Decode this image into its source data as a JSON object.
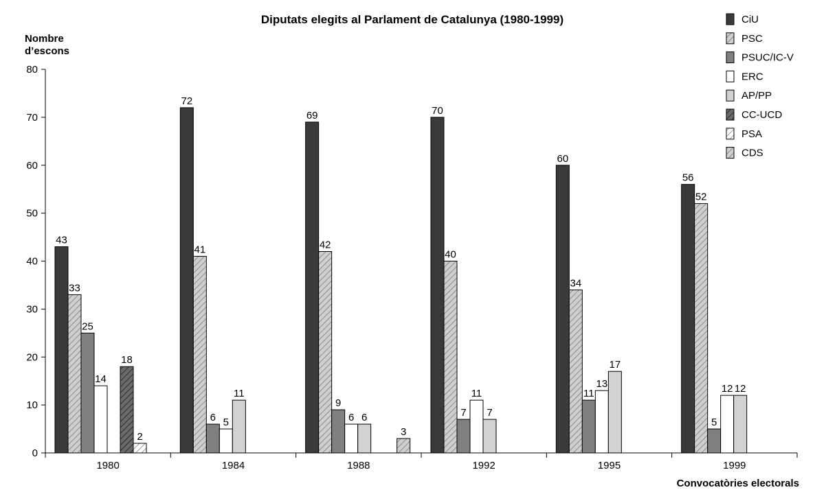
{
  "chart_data": {
    "type": "bar",
    "title": "Diputats elegits al Parlament de Catalunya (1980-1999)",
    "ylabel_line1": "Nombre",
    "ylabel_line2": "d’escons",
    "xlabel": "Convocatòries electorals",
    "ylim": [
      0,
      80
    ],
    "yticks": [
      0,
      10,
      20,
      30,
      40,
      50,
      60,
      70,
      80
    ],
    "categories": [
      "1980",
      "1984",
      "1988",
      "1992",
      "1995",
      "1999"
    ],
    "legend_position": "top-right",
    "series": [
      {
        "name": "CiU",
        "fill": "#3a3a3a",
        "pattern": "solid",
        "values": [
          43,
          72,
          69,
          70,
          60,
          56
        ]
      },
      {
        "name": "PSC",
        "fill": "#c8c8c8",
        "pattern": "hatch",
        "values": [
          33,
          41,
          42,
          40,
          34,
          52
        ]
      },
      {
        "name": "PSUC/IC-V",
        "fill": "#808080",
        "pattern": "solid",
        "values": [
          25,
          6,
          9,
          7,
          11,
          5
        ]
      },
      {
        "name": "ERC",
        "fill": "#ffffff",
        "pattern": "solid",
        "values": [
          14,
          5,
          6,
          11,
          13,
          12
        ]
      },
      {
        "name": "AP/PP",
        "fill": "#d2d2d2",
        "pattern": "solid",
        "values": [
          null,
          11,
          6,
          7,
          17,
          12
        ]
      },
      {
        "name": "CC-UCD",
        "fill": "#6e6e6e",
        "pattern": "hatch-dark",
        "values": [
          18,
          null,
          null,
          null,
          null,
          null
        ]
      },
      {
        "name": "PSA",
        "fill": "#ffffff",
        "pattern": "hatch-light",
        "values": [
          2,
          null,
          null,
          null,
          null,
          null
        ]
      },
      {
        "name": "CDS",
        "fill": "#dcdcdc",
        "pattern": "hatch",
        "values": [
          null,
          null,
          3,
          null,
          null,
          null
        ]
      }
    ]
  }
}
